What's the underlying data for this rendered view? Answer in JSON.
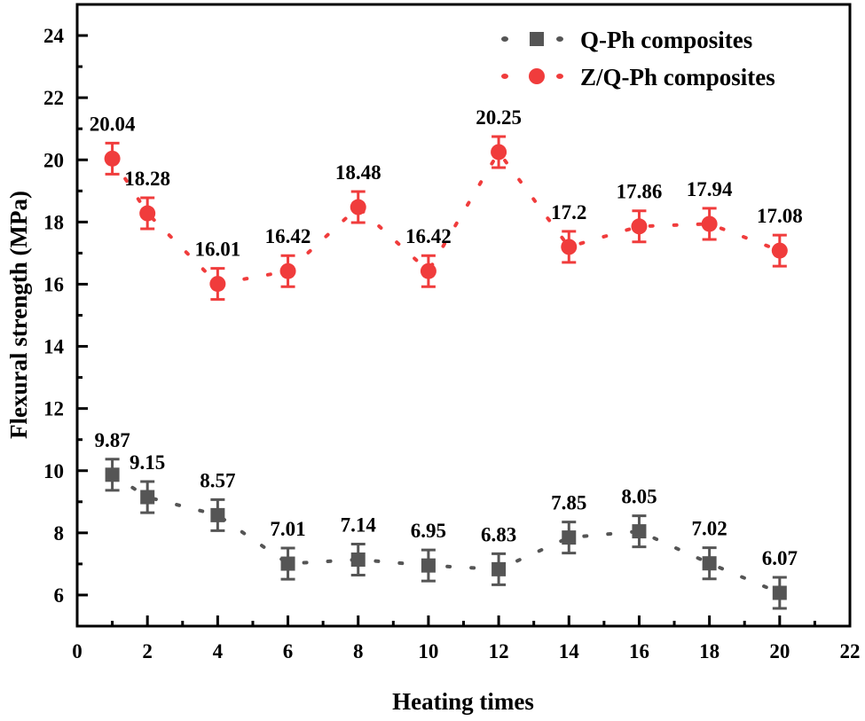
{
  "chart_data": {
    "type": "line",
    "title": "",
    "xlabel": "Heating times",
    "ylabel": "Flexural strength (MPa)",
    "xlim": [
      0,
      22
    ],
    "ylim": [
      5,
      25
    ],
    "xticks": [
      0,
      2,
      4,
      6,
      8,
      10,
      12,
      14,
      16,
      18,
      20,
      22
    ],
    "yticks": [
      6,
      8,
      10,
      12,
      14,
      16,
      18,
      20,
      22,
      24
    ],
    "grid": false,
    "legend_position": "top-right",
    "x": [
      1,
      2,
      4,
      6,
      8,
      10,
      12,
      14,
      16,
      18,
      20
    ],
    "series": [
      {
        "name": "Q-Ph composites",
        "marker": "square",
        "line_style": "dotted",
        "color": "#555555",
        "values": [
          9.87,
          9.15,
          8.57,
          7.01,
          7.14,
          6.95,
          6.83,
          7.85,
          8.05,
          7.02,
          6.07
        ],
        "labels": [
          "9.87",
          "9.15",
          "8.57",
          "7.01",
          "7.14",
          "6.95",
          "6.83",
          "7.85",
          "8.05",
          "7.02",
          "6.07"
        ],
        "error": 0.5
      },
      {
        "name": "Z/Q-Ph composites",
        "marker": "circle",
        "line_style": "dotted",
        "color": "#F03C3C",
        "values": [
          20.04,
          18.28,
          16.01,
          16.42,
          18.48,
          16.42,
          20.25,
          17.2,
          17.86,
          17.94,
          17.08
        ],
        "labels": [
          "20.04",
          "18.28",
          "16.01",
          "16.42",
          "18.48",
          "16.42",
          "20.25",
          "17.2",
          "17.86",
          "17.94",
          "17.08"
        ],
        "error": 0.5
      }
    ]
  }
}
